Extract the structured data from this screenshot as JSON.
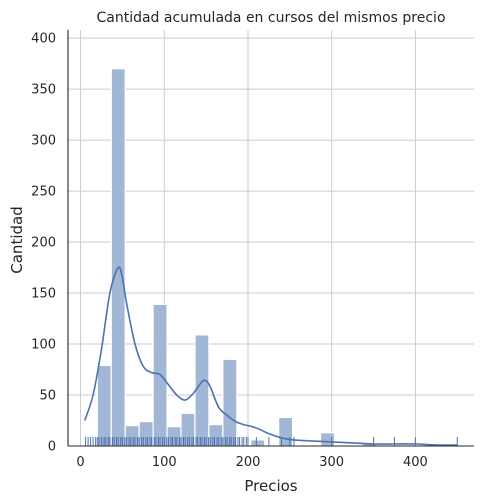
{
  "chart_data": {
    "type": "bar",
    "title": "Cantidad acumulada en cursos del mismos precio",
    "xlabel": "Precios",
    "ylabel": "Cantidad",
    "xlim": [
      -15,
      470
    ],
    "ylim": [
      0,
      408
    ],
    "x_ticks": [
      0,
      100,
      200,
      300,
      400
    ],
    "y_ticks": [
      0,
      50,
      100,
      150,
      200,
      250,
      300,
      350,
      400
    ],
    "grid": true,
    "bar_color": "#a2b6d6",
    "line_color": "#4c72b0",
    "bin_width": 16.67,
    "bins": [
      {
        "start": 20.0,
        "value": 79
      },
      {
        "start": 36.67,
        "value": 370
      },
      {
        "start": 53.33,
        "value": 20
      },
      {
        "start": 70.0,
        "value": 24
      },
      {
        "start": 86.67,
        "value": 139
      },
      {
        "start": 103.33,
        "value": 19
      },
      {
        "start": 120.0,
        "value": 32
      },
      {
        "start": 136.67,
        "value": 109
      },
      {
        "start": 153.33,
        "value": 21
      },
      {
        "start": 170.0,
        "value": 85
      },
      {
        "start": 186.67,
        "value": 0
      },
      {
        "start": 203.33,
        "value": 6
      },
      {
        "start": 220.0,
        "value": 0
      },
      {
        "start": 236.67,
        "value": 28
      },
      {
        "start": 253.33,
        "value": 0
      },
      {
        "start": 270.0,
        "value": 0
      },
      {
        "start": 286.67,
        "value": 13
      },
      {
        "start": 303.33,
        "value": 0
      },
      {
        "start": 320.0,
        "value": 0
      },
      {
        "start": 336.67,
        "value": 3
      },
      {
        "start": 353.33,
        "value": 0
      },
      {
        "start": 370.0,
        "value": 0
      },
      {
        "start": 386.67,
        "value": 1
      },
      {
        "start": 403.33,
        "value": 0
      },
      {
        "start": 420.0,
        "value": 0
      },
      {
        "start": 436.67,
        "value": 1
      }
    ],
    "kde": {
      "x": [
        5,
        15,
        25,
        35,
        45,
        50,
        55,
        65,
        75,
        85,
        95,
        105,
        115,
        125,
        135,
        145,
        150,
        155,
        165,
        175,
        185,
        195,
        205,
        215,
        225,
        240,
        255,
        275,
        300,
        325,
        350,
        375,
        400,
        425,
        450
      ],
      "y": [
        25,
        50,
        95,
        150,
        175,
        165,
        140,
        100,
        78,
        72,
        70,
        60,
        50,
        45,
        52,
        63,
        64,
        58,
        38,
        30,
        24,
        21,
        19,
        16,
        12,
        8,
        6,
        5,
        4,
        3,
        2,
        2,
        2,
        1,
        1
      ]
    },
    "rug": [
      6,
      9,
      12,
      15,
      18,
      20,
      22,
      25,
      28,
      30,
      33,
      35,
      38,
      40,
      43,
      45,
      48,
      50,
      53,
      55,
      58,
      60,
      63,
      65,
      68,
      70,
      73,
      75,
      78,
      80,
      83,
      85,
      88,
      90,
      93,
      95,
      98,
      100,
      103,
      105,
      108,
      110,
      113,
      115,
      118,
      120,
      123,
      125,
      128,
      130,
      133,
      135,
      138,
      140,
      143,
      145,
      148,
      150,
      153,
      155,
      158,
      160,
      163,
      165,
      168,
      170,
      173,
      175,
      178,
      180,
      183,
      185,
      188,
      190,
      193,
      195,
      198,
      200,
      210,
      225,
      240,
      250,
      255,
      300,
      350,
      375,
      400,
      450
    ]
  }
}
